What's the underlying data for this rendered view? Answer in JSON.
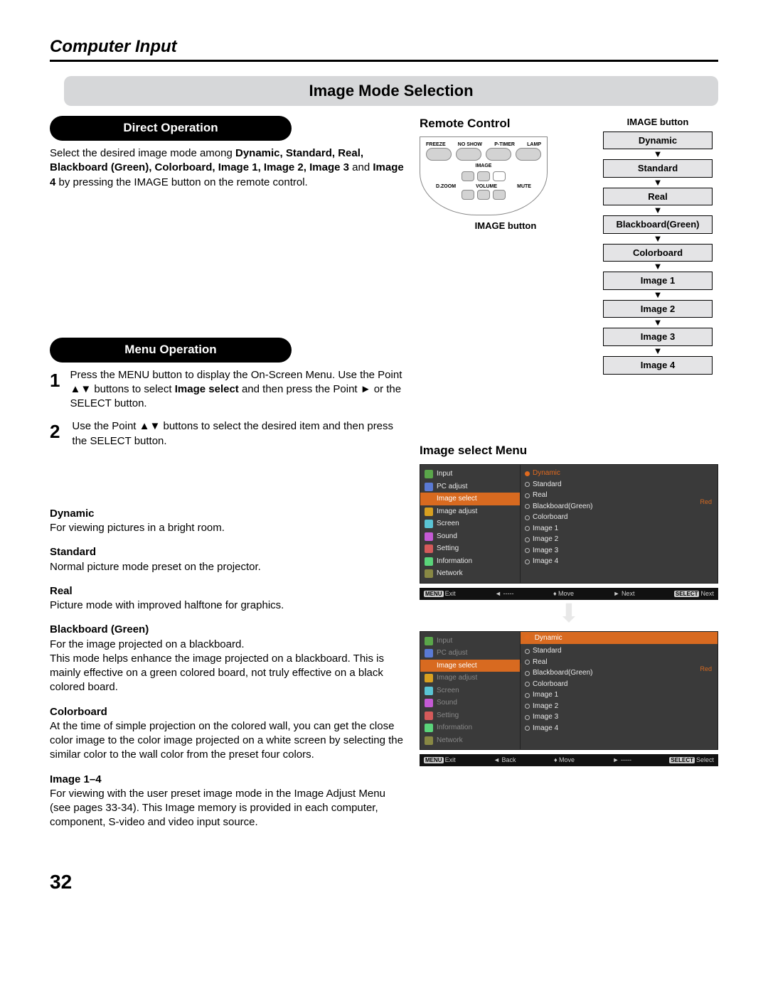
{
  "page": {
    "heading": "Computer Input",
    "banner": "Image Mode Selection",
    "number": "32"
  },
  "direct": {
    "title": "Direct Operation",
    "text_pre": "Select the desired image mode among ",
    "bold_list": "Dynamic, Standard, Real, Blackboard (Green), Colorboard, Image 1, Image 2, Image 3",
    "and": " and ",
    "bold_last": "Image 4",
    "text_post": " by pressing the IMAGE button on the remote control."
  },
  "menuop": {
    "title": "Menu Operation",
    "step1_a": "Press the MENU button to display the On-Screen Menu. Use the Point ▲▼ buttons to select ",
    "step1_b": "Image select",
    "step1_c": " and then press the Point ► or the SELECT button.",
    "step2": "Use the Point ▲▼ buttons to select  the desired item and then press the SELECT button."
  },
  "modes": [
    {
      "t": "Dynamic",
      "d": "For viewing pictures in a bright room."
    },
    {
      "t": "Standard",
      "d": "Normal picture mode preset on the projector."
    },
    {
      "t": "Real",
      "d": "Picture mode with improved halftone for graphics."
    },
    {
      "t": "Blackboard (Green)",
      "d": "For the image projected on a blackboard.\nThis mode helps enhance the image projected on a blackboard. This is mainly effective on a green colored board, not truly effective on a black colored board."
    },
    {
      "t": "Colorboard",
      "d": "At the time of simple projection on the colored wall, you can get the close color image to the color image projected on a white screen by selecting the similar color to the wall color from the preset four colors."
    },
    {
      "t": "Image 1–4",
      "d": "For viewing with the user preset image mode in the Image Adjust Menu (see pages 33-34). This Image memory is provided in each computer, component, S-video and video input source."
    }
  ],
  "remote": {
    "heading": "Remote Control",
    "row1": [
      "FREEZE",
      "NO SHOW",
      "P-TIMER",
      "LAMP"
    ],
    "row2_center": "IMAGE",
    "row3": [
      "D.ZOOM",
      "VOLUME",
      "MUTE"
    ],
    "label": "IMAGE button"
  },
  "flow": {
    "heading": "IMAGE button",
    "items": [
      "Dynamic",
      "Standard",
      "Real",
      "Blackboard(Green)",
      "Colorboard",
      "Image 1",
      "Image 2",
      "Image 3",
      "Image 4"
    ]
  },
  "menu": {
    "title": "Image select Menu",
    "sidebar": [
      {
        "label": "Input",
        "color": "#5aa64a"
      },
      {
        "label": "PC adjust",
        "color": "#5a7ad4"
      },
      {
        "label": "Image select",
        "color": "#d86a20"
      },
      {
        "label": "Image adjust",
        "color": "#d8a020"
      },
      {
        "label": "Screen",
        "color": "#5ac4d4"
      },
      {
        "label": "Sound",
        "color": "#c45ad4"
      },
      {
        "label": "Setting",
        "color": "#d45a5a"
      },
      {
        "label": "Information",
        "color": "#5ad47a"
      },
      {
        "label": "Network",
        "color": "#888844"
      }
    ],
    "options": [
      "Dynamic",
      "Standard",
      "Real",
      "Blackboard(Green)",
      "Colorboard",
      "Image 1",
      "Image 2",
      "Image 3",
      "Image 4"
    ],
    "red": "Red",
    "foot1": {
      "a": "Exit",
      "b": "-----",
      "c": "Move",
      "d": "Next",
      "e": "Next"
    },
    "foot2": {
      "a": "Exit",
      "b": "Back",
      "c": "Move",
      "d": "-----",
      "e": "Select"
    },
    "foot_keys": {
      "a": "MENU",
      "e": "SELECT"
    }
  }
}
